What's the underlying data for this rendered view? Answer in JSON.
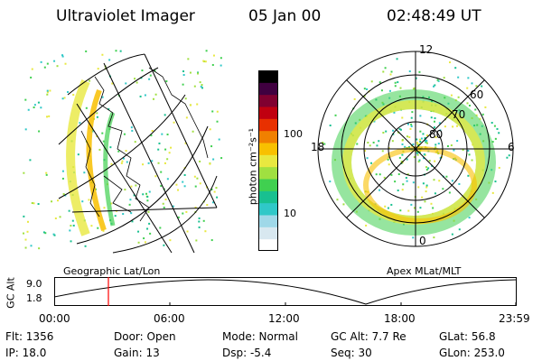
{
  "header": {
    "title": "Ultraviolet Imager",
    "date": "05 Jan 00",
    "time": "02:48:49 UT"
  },
  "colorbar": {
    "unit_label": "photon cm⁻²s⁻¹",
    "ticks": [
      "100",
      "10"
    ],
    "colors": [
      "#ffffff",
      "#d8e8f0",
      "#9fd8e8",
      "#30c8c8",
      "#18c090",
      "#40d050",
      "#a0e040",
      "#e8e840",
      "#f8c000",
      "#f08000",
      "#e83000",
      "#c00010",
      "#800030",
      "#400040",
      "#000000"
    ]
  },
  "polar": {
    "mlt_labels": {
      "top": "12",
      "left": "18",
      "right": "6",
      "bottom": "0"
    },
    "lat_labels": [
      "60",
      "70",
      "80"
    ]
  },
  "map_caption": "Geographic Lat/Lon",
  "polar_caption": "Apex MLat/MLT",
  "altitude_plot": {
    "ylabel": "GC Alt",
    "y_ticks": [
      "9.0",
      "1.8"
    ],
    "x_ticks": [
      "00:00",
      "06:00",
      "12:00",
      "18:00",
      "23:59"
    ],
    "marker_time": "02:48:49",
    "line_color": "#000000",
    "marker_color": "#ff0000"
  },
  "info": {
    "row1": {
      "flt": "Flt:  1356",
      "door": "Door:  Open",
      "mode": "Mode:  Normal",
      "gcalt": "GC Alt:  7.7 Re",
      "glat": "GLat:   56.8"
    },
    "row2": {
      "ip": "IP:  18.0",
      "gain": "Gain:  13",
      "dsp": "Dsp:      -5.4",
      "seq": "Seq:  30",
      "glon": "GLon:  253.0"
    }
  }
}
